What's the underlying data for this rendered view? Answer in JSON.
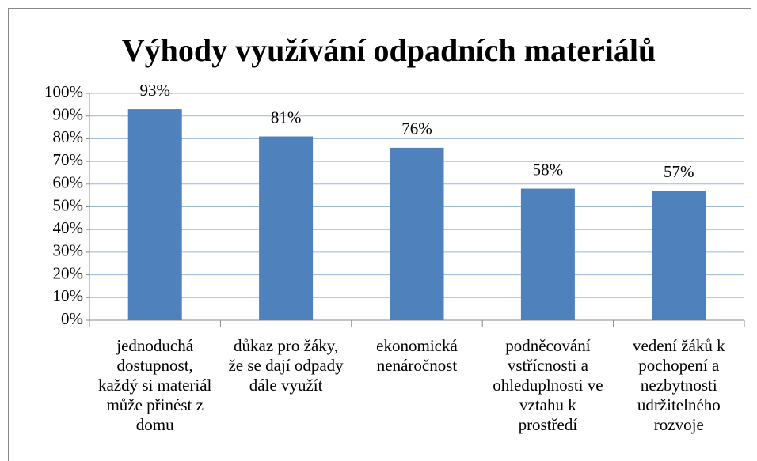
{
  "chart_data": {
    "type": "bar",
    "title": "Výhody využívání odpadních materiálů",
    "categories": [
      "jednoduchá dostupnost, každý si materiál může přinést z domu",
      "důkaz pro žáky, že se dají odpady dále využít",
      "ekonomická nenáročnost",
      "podněcování vstřícnosti a ohleduplnosti ve vztahu k prostředí",
      "vedení žáků k pochopení a nezbytnosti udržitelného rozvoje"
    ],
    "values": [
      93,
      81,
      76,
      58,
      57
    ],
    "value_labels": [
      "93%",
      "81%",
      "76%",
      "58%",
      "57%"
    ],
    "color": "#4f81bd",
    "ylim": [
      0,
      100
    ],
    "yticks": [
      {
        "value": 0,
        "label": "0%"
      },
      {
        "value": 10,
        "label": "10%"
      },
      {
        "value": 20,
        "label": "20%"
      },
      {
        "value": 30,
        "label": "30%"
      },
      {
        "value": 40,
        "label": "40%"
      },
      {
        "value": 50,
        "label": "50%"
      },
      {
        "value": 60,
        "label": "60%"
      },
      {
        "value": 70,
        "label": "70%"
      },
      {
        "value": 80,
        "label": "80%"
      },
      {
        "value": 90,
        "label": "90%"
      },
      {
        "value": 100,
        "label": "100%"
      }
    ],
    "grid": true
  }
}
